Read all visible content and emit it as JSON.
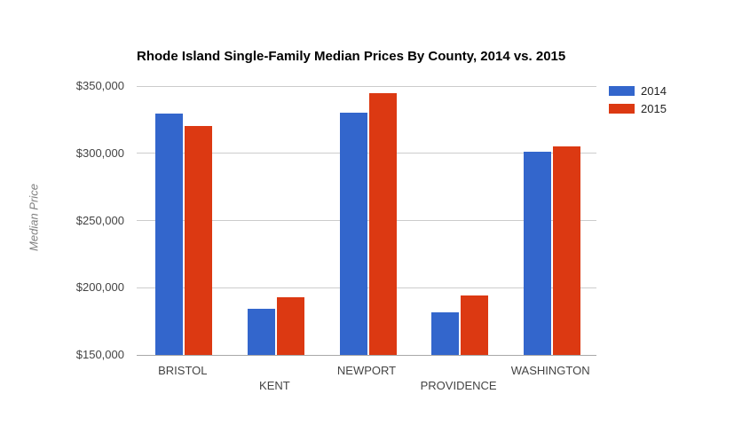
{
  "chart_data": {
    "type": "bar",
    "title": "Rhode Island Single-Family Median Prices By County, 2014 vs. 2015",
    "ylabel": "Median Price",
    "xlabel": "",
    "categories": [
      "BRISTOL",
      "KENT",
      "NEWPORT",
      "PROVIDENCE",
      "WASHINGTON"
    ],
    "series": [
      {
        "name": "2014",
        "color": "#3366cc",
        "values": [
          329500,
          184500,
          330000,
          181500,
          301000
        ]
      },
      {
        "name": "2015",
        "color": "#dc3912",
        "values": [
          320000,
          192700,
          345000,
          194000,
          305000
        ]
      }
    ],
    "ylim": [
      150000,
      350000
    ],
    "ytick_step": 50000,
    "ytick_labels": [
      "$150,000",
      "$200,000",
      "$250,000",
      "$300,000",
      "$350,000"
    ],
    "grid": true,
    "legend_position": "right",
    "gridline_color": "#cccccc",
    "axis_text_color": "#444444",
    "background_color": "#ffffff"
  }
}
